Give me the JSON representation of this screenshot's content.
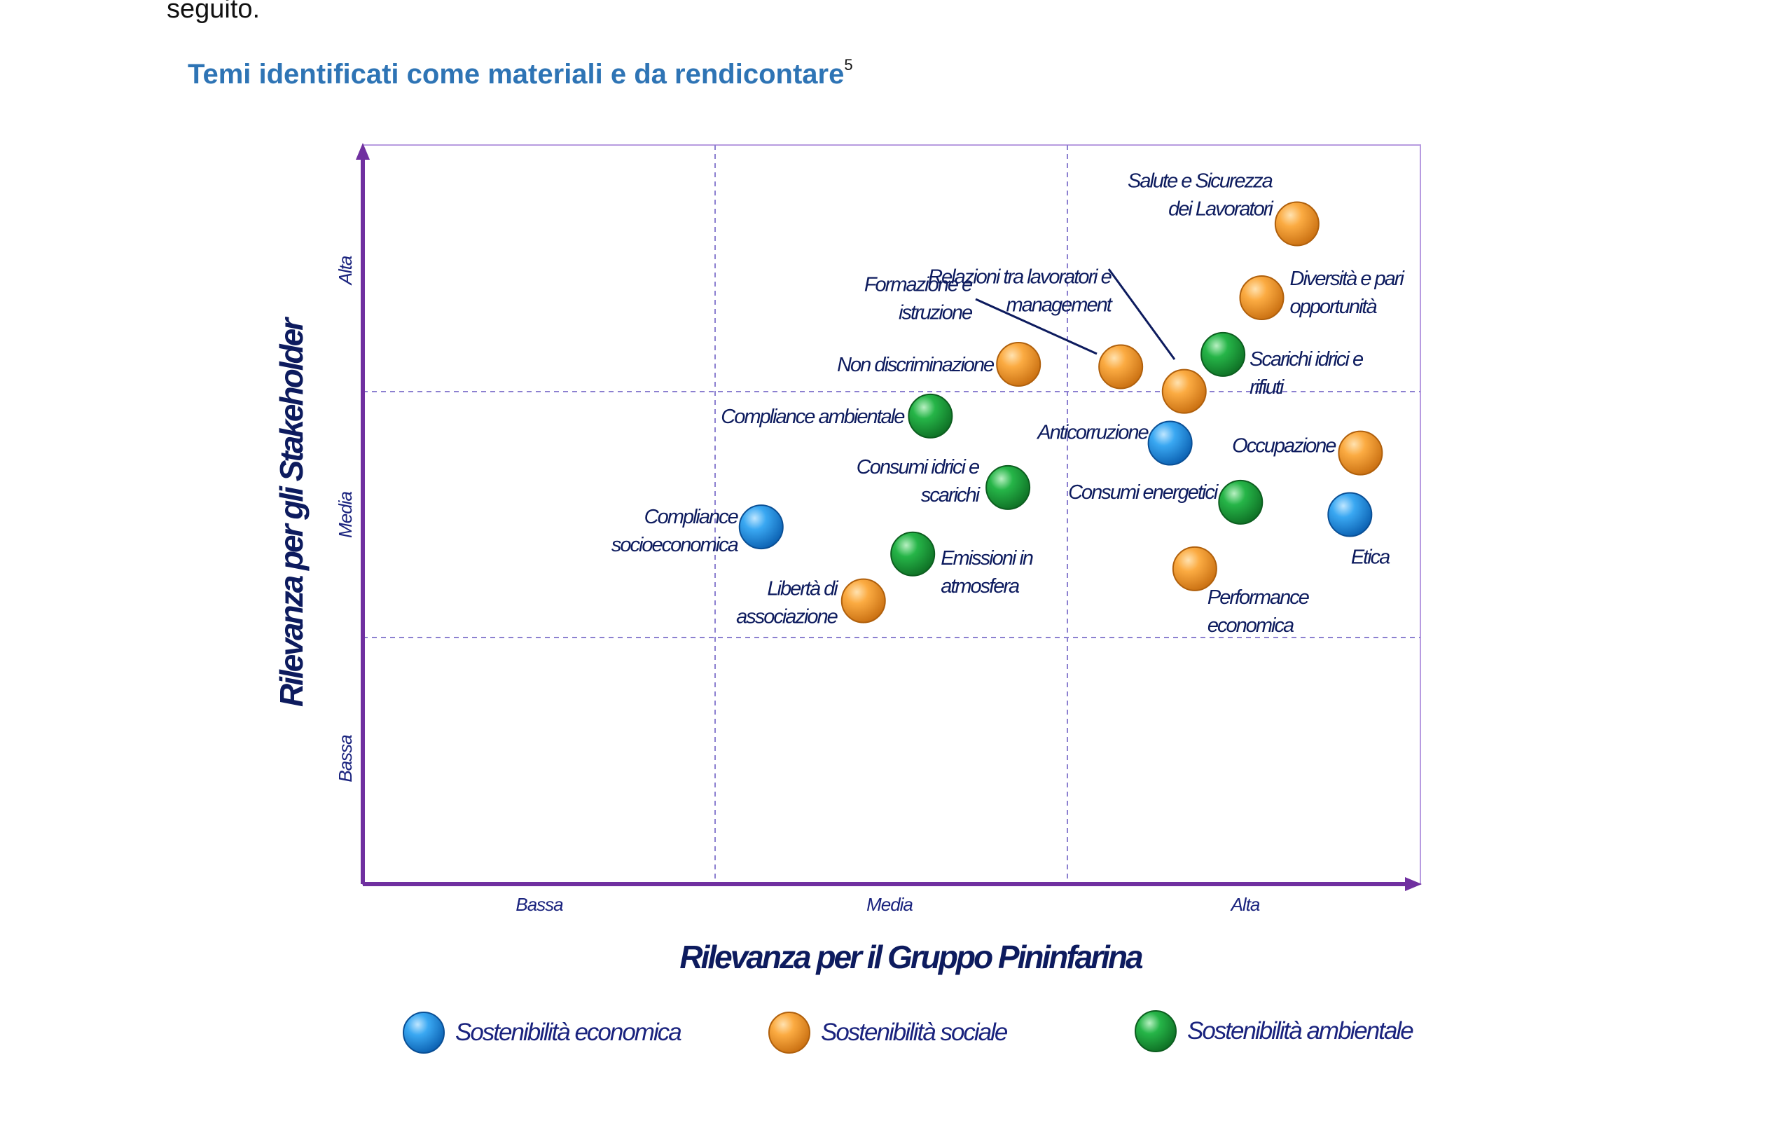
{
  "intro_text": "seguito.",
  "title": "Temi identificati come materiali e da rendicontare",
  "title_footnote": "5",
  "colors": {
    "economica": "#1e90e8",
    "sociale": "#f7a233",
    "ambientale": "#1fa83d",
    "axis": "#7030a0",
    "grid": "#9b8fd6"
  },
  "chart_data": {
    "type": "scatter",
    "xlabel": "Rilevanza per il Gruppo Pininfarina",
    "ylabel": "Rilevanza per gli Stakeholder",
    "x_ticks": [
      "Bassa",
      "Media",
      "Alta"
    ],
    "y_ticks": [
      "Bassa",
      "Media",
      "Alta"
    ],
    "xlim": [
      0,
      3
    ],
    "ylim": [
      0,
      3
    ],
    "grid": true,
    "legend_position": "bottom",
    "legend": [
      {
        "key": "economica",
        "label": "Sostenibilità economica"
      },
      {
        "key": "sociale",
        "label": "Sostenibilità sociale"
      },
      {
        "key": "ambientale",
        "label": "Sostenibilità ambientale"
      }
    ],
    "points": [
      {
        "label": [
          "Salute e Sicurezza",
          "dei Lavoratori"
        ],
        "category": "sociale",
        "x": 2.65,
        "y": 2.68
      },
      {
        "label": [
          "Diversità e pari",
          "opportunità"
        ],
        "category": "sociale",
        "x": 2.55,
        "y": 2.38
      },
      {
        "label": [
          "Relazioni tra lavoratori e",
          "management"
        ],
        "category": "sociale",
        "x": 2.33,
        "y": 2.0
      },
      {
        "label": [
          "Formazione e",
          "istruzione"
        ],
        "category": "sociale",
        "x": 2.15,
        "y": 2.1
      },
      {
        "label": [
          "Non discriminazione"
        ],
        "category": "sociale",
        "x": 1.86,
        "y": 2.11
      },
      {
        "label": [
          "Scarichi idrici e",
          "rifiuti"
        ],
        "category": "ambientale",
        "x": 2.44,
        "y": 2.15
      },
      {
        "label": [
          "Compliance ambientale"
        ],
        "category": "ambientale",
        "x": 1.61,
        "y": 1.9
      },
      {
        "label": [
          "Anticorruzione"
        ],
        "category": "economica",
        "x": 2.29,
        "y": 1.79
      },
      {
        "label": [
          "Occupazione"
        ],
        "category": "sociale",
        "x": 2.83,
        "y": 1.75
      },
      {
        "label": [
          "Consumi idrici e",
          "scarichi"
        ],
        "category": "ambientale",
        "x": 1.83,
        "y": 1.61
      },
      {
        "label": [
          "Consumi energetici"
        ],
        "category": "ambientale",
        "x": 2.49,
        "y": 1.55
      },
      {
        "label": [
          "Etica"
        ],
        "category": "economica",
        "x": 2.8,
        "y": 1.5
      },
      {
        "label": [
          "Compliance",
          "socioeconomica"
        ],
        "category": "economica",
        "x": 1.13,
        "y": 1.45
      },
      {
        "label": [
          "Emissioni in",
          "atmosfera"
        ],
        "category": "ambientale",
        "x": 1.56,
        "y": 1.34
      },
      {
        "label": [
          "Performance",
          "economica"
        ],
        "category": "sociale",
        "x": 2.36,
        "y": 1.28
      },
      {
        "label": [
          "Libertà di",
          "associazione"
        ],
        "category": "sociale",
        "x": 1.42,
        "y": 1.15
      }
    ]
  }
}
